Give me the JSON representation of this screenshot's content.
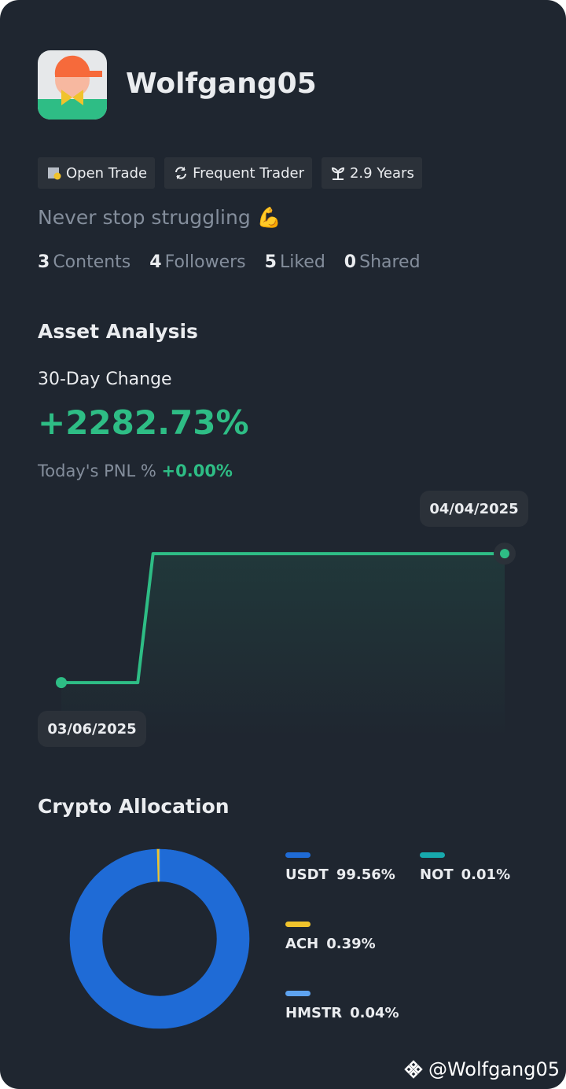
{
  "profile": {
    "username": "Wolfgang05",
    "badges": [
      "Open Trade",
      "Frequent Trader",
      "2.9 Years"
    ],
    "bio": "Never stop struggling 💪",
    "stats": [
      {
        "count": 3,
        "label": "Contents"
      },
      {
        "count": 4,
        "label": "Followers"
      },
      {
        "count": 5,
        "label": "Liked"
      },
      {
        "count": 0,
        "label": "Shared"
      }
    ]
  },
  "asset_analysis": {
    "title": "Asset Analysis",
    "change_label": "30-Day Change",
    "change_value": "+2282.73%",
    "pnl_label": "Today's PNL %",
    "pnl_value": "+0.00%"
  },
  "chart_data": [
    {
      "type": "line",
      "x": [
        "03/06/2025",
        null,
        null,
        null,
        null,
        null,
        null,
        null,
        null,
        null,
        null,
        null,
        null,
        null,
        null,
        null,
        null,
        null,
        null,
        null,
        null,
        null,
        null,
        null,
        null,
        null,
        null,
        null,
        null,
        "04/04/2025"
      ],
      "values": [
        0,
        0,
        0,
        0,
        0,
        0,
        2282.73,
        2282.73,
        2282.73,
        2282.73,
        2282.73,
        2282.73,
        2282.73,
        2282.73,
        2282.73,
        2282.73,
        2282.73,
        2282.73,
        2282.73,
        2282.73,
        2282.73,
        2282.73,
        2282.73,
        2282.73,
        2282.73,
        2282.73,
        2282.73,
        2282.73,
        2282.73,
        2282.73
      ],
      "color": "#2ebd85",
      "ylim": [
        -1000,
        3230
      ]
    },
    {
      "type": "pie",
      "title": "Crypto Allocation",
      "categories": [
        "USDT",
        "NOT",
        "ACH",
        "HMSTR"
      ],
      "values": [
        99.56,
        0.01,
        0.39,
        0.04
      ],
      "value_labels": [
        "99.56%",
        "0.01%",
        "0.39%",
        "0.04%"
      ],
      "colors": [
        "#1f6bd6",
        "#17a9ad",
        "#f0c32c",
        "#5ea3f0"
      ]
    }
  ],
  "footer": {
    "handle": "@Wolfgang05"
  }
}
